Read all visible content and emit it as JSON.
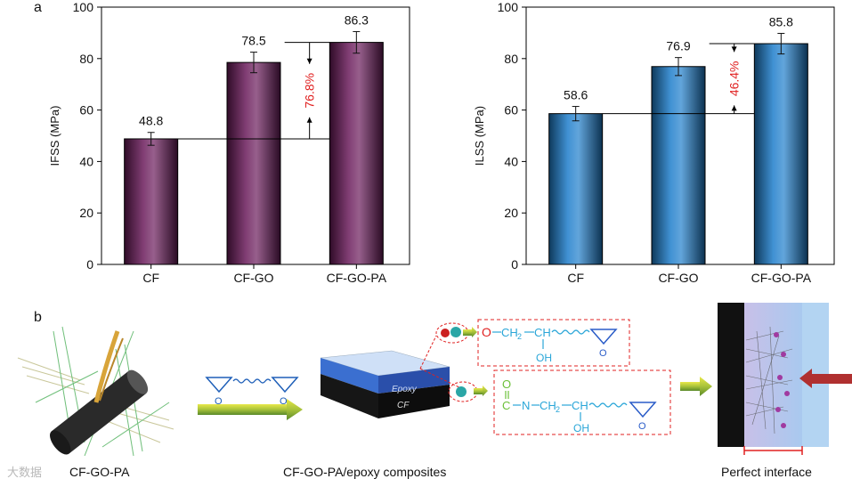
{
  "panel_a_label": "a",
  "panel_b_label": "b",
  "chart_data": [
    {
      "type": "bar",
      "ylabel": "IFSS (MPa)",
      "xlabel": "",
      "ylim": [
        0,
        100
      ],
      "yticks": [
        0,
        20,
        40,
        60,
        80,
        100
      ],
      "categories": [
        "CF",
        "CF-GO",
        "CF-GO-PA"
      ],
      "values": [
        48.8,
        78.5,
        86.3
      ],
      "errors": [
        2.5,
        4.0,
        4.2
      ],
      "value_labels": [
        "48.8",
        "78.5",
        "86.3"
      ],
      "increase_label": "76.8%",
      "bar_color": "#6a1b5a",
      "grid": false
    },
    {
      "type": "bar",
      "ylabel": "ILSS (MPa)",
      "xlabel": "",
      "ylim": [
        0,
        100
      ],
      "yticks": [
        0,
        20,
        40,
        60,
        80,
        100
      ],
      "categories": [
        "CF",
        "CF-GO",
        "CF-GO-PA"
      ],
      "values": [
        58.6,
        76.9,
        85.8
      ],
      "errors": [
        2.8,
        3.5,
        4.0
      ],
      "value_labels": [
        "58.6",
        "76.9",
        "85.8"
      ],
      "increase_label": "46.4%",
      "bar_color": "#1e7ecb",
      "grid": false
    }
  ],
  "schematic": {
    "block_top_label": "Epoxy",
    "block_bottom_label": "CF",
    "reaction1": {
      "o": "O",
      "chain": "CH",
      "oh": "OH",
      "sub": "2"
    },
    "reaction2": {
      "o": "O",
      "c": "C",
      "n": "N",
      "chain": "CH",
      "oh": "OH",
      "sub": "2"
    },
    "epoxide_o": "O",
    "captions": {
      "left": "CF-GO-PA",
      "middle": "CF-GO-PA/epoxy composites",
      "right": "Perfect interface"
    },
    "watermark": "大数据"
  }
}
